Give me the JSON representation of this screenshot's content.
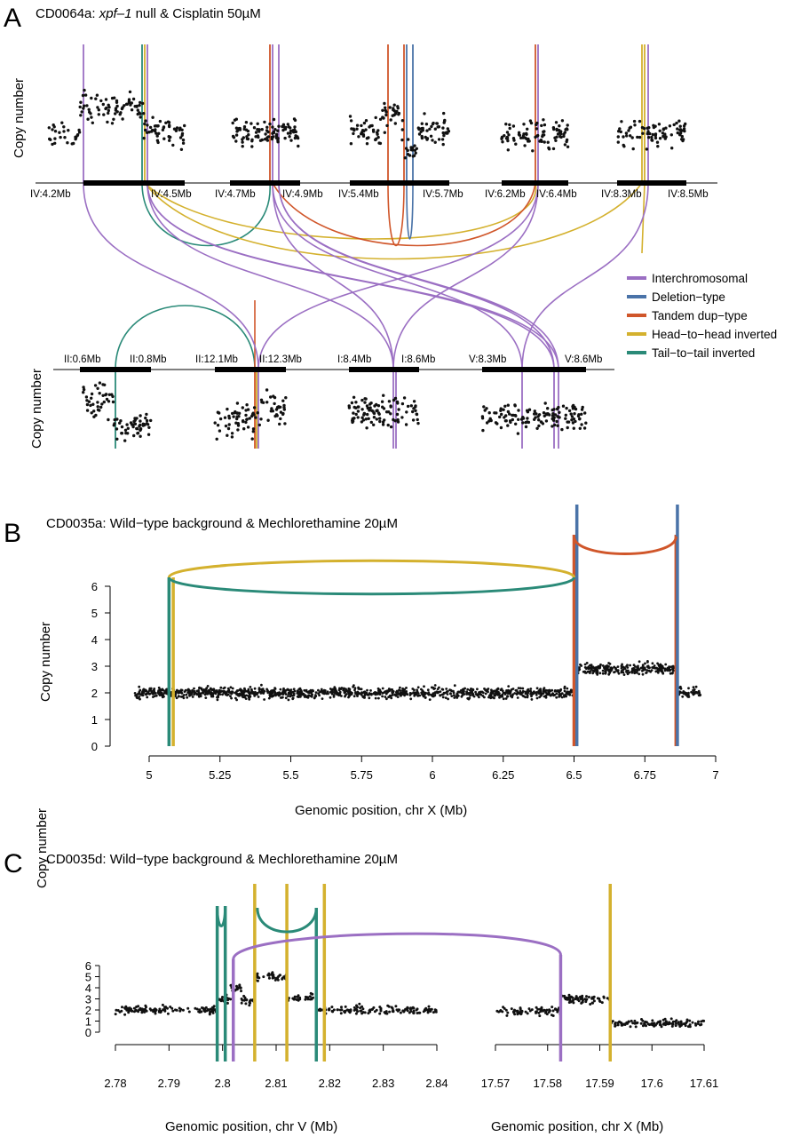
{
  "colors": {
    "interchromosomal": "#9b6fc3",
    "deletion": "#4a73a8",
    "tandem_dup": "#d0562a",
    "head_to_head": "#d4b12e",
    "tail_to_tail": "#2a8a78",
    "points": "#111111",
    "segment": "#000000"
  },
  "legend": {
    "items": [
      {
        "key": "interchromosomal",
        "label": "Interchromosomal"
      },
      {
        "key": "deletion",
        "label": "Deletion−type"
      },
      {
        "key": "tandem_dup",
        "label": "Tandem dup−type"
      },
      {
        "key": "head_to_head",
        "label": "Head−to−head inverted"
      },
      {
        "key": "tail_to_tail",
        "label": "Tail−to−tail inverted"
      }
    ]
  },
  "chart_data": [
    {
      "panel": "A",
      "type": "scatter",
      "title_prefix": "CD0064a: ",
      "title_italic": "xpf–1",
      "title_suffix": " null & Cisplatin 50µM",
      "ylabel": "Copy number",
      "top_segments": [
        {
          "start": "IV:4.2Mb",
          "end": "IV:4.5Mb"
        },
        {
          "start": "IV:4.7Mb",
          "end": "IV:4.9Mb"
        },
        {
          "start": "IV:5.4Mb",
          "end": "IV:5.7Mb"
        },
        {
          "start": "IV:6.2Mb",
          "end": "IV:6.4Mb"
        },
        {
          "start": "IV:8.3Mb",
          "end": "IV:8.5Mb"
        }
      ],
      "bottom_segments": [
        {
          "start": "II:0.6Mb",
          "end": "II:0.8Mb"
        },
        {
          "start": "II:12.1Mb",
          "end": "II:12.3Mb"
        },
        {
          "start": "I:8.4Mb",
          "end": "I:8.6Mb"
        },
        {
          "start": "V:8.3Mb",
          "end": "V:8.6Mb"
        }
      ]
    },
    {
      "panel": "B",
      "type": "scatter",
      "title": "CD0035a: Wild−type background & Mechlorethamine 20µM",
      "xlabel": "Genomic position, chr X (Mb)",
      "ylabel": "Copy number",
      "xlim": [
        4.95,
        7.0
      ],
      "ylim": [
        0,
        6
      ],
      "xticks": [
        "5",
        "5.25",
        "5.5",
        "5.75",
        "6",
        "6.25",
        "6.5",
        "6.75",
        "7"
      ],
      "yticks": [
        "0",
        "1",
        "2",
        "3",
        "4",
        "5",
        "6"
      ],
      "segments_copy_number": [
        {
          "from": 4.95,
          "to": 6.5,
          "cn": 2
        },
        {
          "from": 6.5,
          "to": 6.86,
          "cn": 2.9
        },
        {
          "from": 6.86,
          "to": 6.95,
          "cn": 2
        }
      ],
      "breakpoints": [
        {
          "type": "tail_to_tail",
          "x": [
            5.07,
            6.5
          ]
        },
        {
          "type": "head_to_head",
          "x": [
            5.08,
            6.5
          ]
        },
        {
          "type": "tandem_dup",
          "x": [
            6.5,
            6.86
          ]
        },
        {
          "type": "deletion",
          "x": [
            6.51,
            6.86
          ]
        }
      ]
    },
    {
      "panel": "C",
      "type": "scatter",
      "title": "CD0035d: Wild−type background & Mechlorethamine 20µM",
      "ylabel": "Copy number",
      "ylim": [
        0,
        6
      ],
      "yticks": [
        "0",
        "1",
        "2",
        "3",
        "4",
        "5",
        "6"
      ],
      "left": {
        "xlabel": "Genomic position, chr V (Mb)",
        "xlim": [
          2.78,
          2.84
        ],
        "xticks": [
          "2.78",
          "2.79",
          "2.8",
          "2.81",
          "2.82",
          "2.83",
          "2.84"
        ]
      },
      "right": {
        "xlabel": "Genomic position, chr X (Mb)",
        "xlim": [
          17.57,
          17.61
        ],
        "xticks": [
          "17.57",
          "17.58",
          "17.59",
          "17.6",
          "17.61"
        ]
      },
      "breakpoints": [
        {
          "type": "tail_to_tail",
          "x": [
            2.799,
            2.8005
          ]
        },
        {
          "type": "tail_to_tail",
          "x": [
            2.8065,
            2.8175
          ]
        },
        {
          "type": "head_to_head",
          "x": [
            2.806,
            2.812
          ]
        },
        {
          "type": "head_to_head",
          "x": [
            2.812,
            2.819
          ]
        },
        {
          "type": "interchromosomal",
          "chr_v": 2.802,
          "chr_x": 17.5825
        },
        {
          "type": "head_to_head",
          "chr_x": 17.592
        }
      ]
    }
  ]
}
